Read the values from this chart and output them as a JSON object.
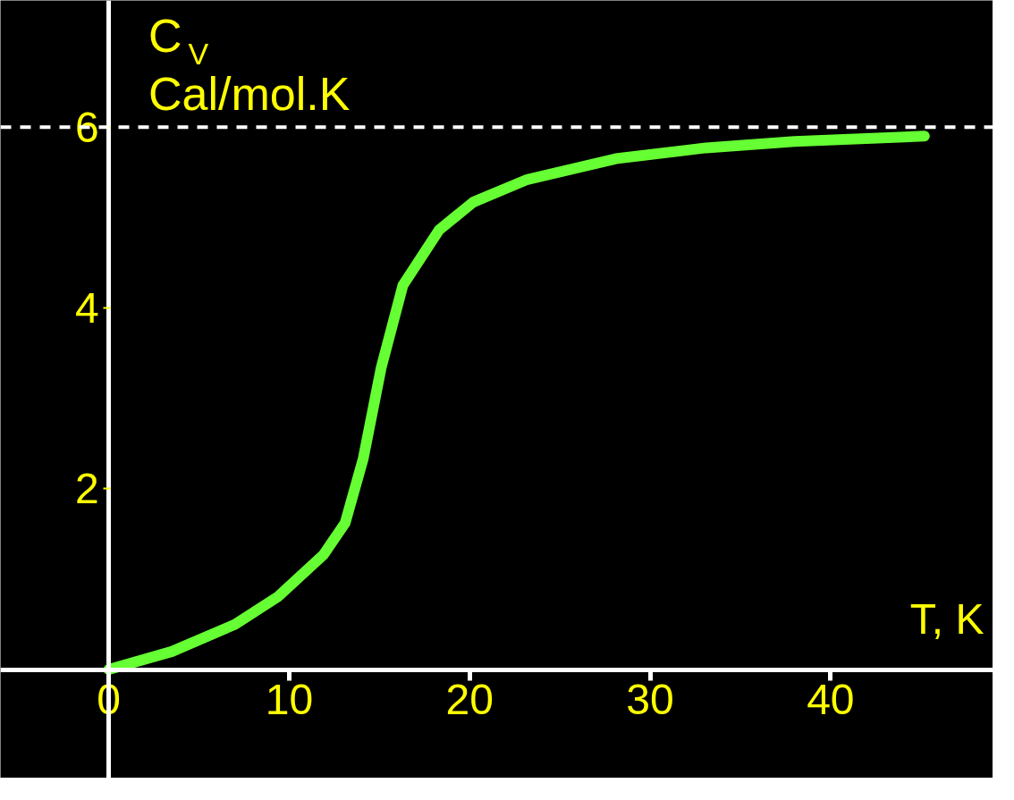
{
  "chart_data": {
    "type": "line",
    "xlabel": "T, K",
    "ylabel": "C$_{V}$ Cal/mol.K",
    "xlim": [
      -6,
      49
    ],
    "ylim": [
      -1.2,
      7.4
    ],
    "xticks": [
      0,
      10,
      20,
      30,
      40
    ],
    "yticks": [
      2,
      4,
      6
    ],
    "grid": false,
    "line_style": "solid",
    "marker": "none",
    "ref_lines": [
      {
        "axis": "y",
        "value": 6,
        "label": null,
        "color": "#ffffff",
        "line_style": "dashed"
      }
    ],
    "series": [
      {
        "color": "#66ff33",
        "x": [
          0,
          3.5,
          7,
          9.4,
          11.9,
          13.1,
          14.1,
          15.1,
          16.3,
          18.3,
          20.2,
          23.2,
          28.1,
          33.1,
          38,
          45.2
        ],
        "values": [
          0,
          0.2,
          0.5,
          0.81,
          1.27,
          1.62,
          2.33,
          3.34,
          4.25,
          4.86,
          5.17,
          5.42,
          5.65,
          5.77,
          5.84,
          5.9
        ]
      }
    ]
  }
}
